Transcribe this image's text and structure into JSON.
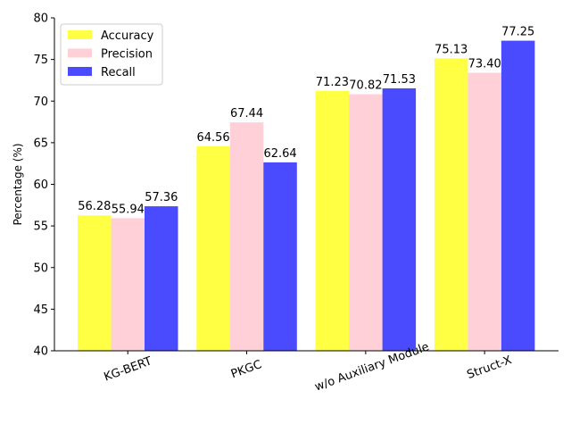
{
  "chart_data": {
    "type": "bar",
    "ylabel": "Percentage (%)",
    "ylim": [
      40,
      80
    ],
    "yticks": [
      40,
      45,
      50,
      55,
      60,
      65,
      70,
      75,
      80
    ],
    "categories": [
      "KG-BERT",
      "PKGC",
      "w/o Auxiliary Module",
      "Struct-X"
    ],
    "series": [
      {
        "name": "Accuracy",
        "color": "#ffff44",
        "values": [
          56.28,
          64.56,
          71.23,
          75.13
        ],
        "labels": [
          "56.28",
          "64.56",
          "71.23",
          "75.13"
        ]
      },
      {
        "name": "Precision",
        "color": "#ffd0d8",
        "values": [
          55.94,
          67.44,
          70.82,
          73.4
        ],
        "labels": [
          "55.94",
          "67.44",
          "70.82",
          "73.40"
        ]
      },
      {
        "name": "Recall",
        "color": "#4a4aff",
        "values": [
          57.36,
          62.64,
          71.53,
          77.25
        ],
        "labels": [
          "57.36",
          "62.64",
          "71.53",
          "77.25"
        ]
      }
    ],
    "legend_position": "top-left",
    "xtick_rotation": "rotated",
    "grid": false
  }
}
